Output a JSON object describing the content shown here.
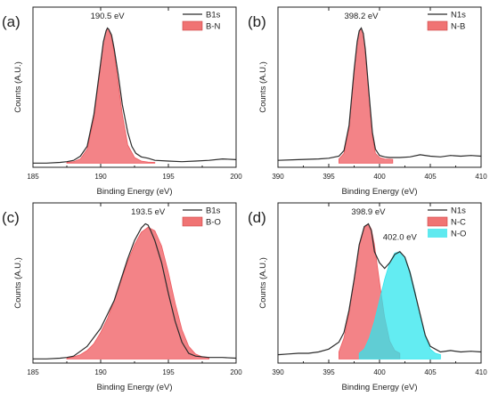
{
  "colors": {
    "data_line": "#2b2b2b",
    "fill_red": "#ef5a5f",
    "fill_red_legend": "#f07373",
    "fill_cyan": "#2fe6ee",
    "fill_cyan_legend": "#5fe9ef",
    "axis": "#222222"
  },
  "chart_data": [
    {
      "panel_label": "(a)",
      "type": "line",
      "xlabel": "Binding Energy (eV)",
      "ylabel": "Counts (A.U.)",
      "xlim": [
        185,
        200
      ],
      "ylim": [
        0,
        1.15
      ],
      "xticks": [
        "185",
        "190",
        "195",
        "200"
      ],
      "legend_position": "top-right",
      "peak_labels": [
        {
          "text": "190.5 eV",
          "x": 190.5,
          "y": 1.04
        }
      ],
      "series": [
        {
          "name": "B1s",
          "kind": "data",
          "x": [
            185,
            186,
            187,
            187.5,
            188,
            188.5,
            189,
            189.5,
            190,
            190.2,
            190.4,
            190.5,
            190.6,
            190.8,
            191,
            191.3,
            191.6,
            192,
            192.3,
            192.6,
            193,
            193.5,
            194,
            195,
            196,
            197,
            198,
            199,
            200
          ],
          "y": [
            0.03,
            0.03,
            0.035,
            0.04,
            0.05,
            0.08,
            0.15,
            0.38,
            0.75,
            0.9,
            0.98,
            1.0,
            0.99,
            0.95,
            0.85,
            0.66,
            0.45,
            0.25,
            0.15,
            0.1,
            0.075,
            0.065,
            0.05,
            0.045,
            0.04,
            0.045,
            0.05,
            0.06,
            0.055
          ]
        },
        {
          "name": "B-N",
          "kind": "fill",
          "x": [
            187.5,
            188,
            188.5,
            189,
            189.5,
            190,
            190.2,
            190.4,
            190.5,
            190.6,
            190.8,
            191,
            191.3,
            191.6,
            192,
            192.5,
            193,
            193.5,
            194
          ],
          "y": [
            0.035,
            0.04,
            0.06,
            0.13,
            0.35,
            0.74,
            0.9,
            0.98,
            1.0,
            0.985,
            0.93,
            0.82,
            0.6,
            0.38,
            0.16,
            0.07,
            0.045,
            0.037,
            0.035
          ]
        }
      ]
    },
    {
      "panel_label": "(b)",
      "type": "line",
      "xlabel": "Binding Energy (eV)",
      "ylabel": "Counts (A.U.)",
      "xlim": [
        390,
        410
      ],
      "ylim": [
        0,
        1.15
      ],
      "xticks": [
        "390",
        "395",
        "400",
        "405",
        "410"
      ],
      "legend_position": "top-right",
      "peak_labels": [
        {
          "text": "398.2 eV",
          "x": 398.2,
          "y": 1.04
        }
      ],
      "series": [
        {
          "name": "N1s",
          "kind": "data",
          "x": [
            390,
            392,
            394,
            395,
            396,
            396.5,
            397,
            397.5,
            397.8,
            398,
            398.2,
            398.4,
            398.6,
            399,
            399.3,
            399.6,
            400,
            400.5,
            401,
            402,
            403,
            404,
            405,
            406,
            407,
            408,
            409,
            410
          ],
          "y": [
            0.05,
            0.055,
            0.06,
            0.065,
            0.08,
            0.12,
            0.3,
            0.7,
            0.9,
            0.98,
            1.0,
            0.96,
            0.85,
            0.5,
            0.25,
            0.13,
            0.085,
            0.075,
            0.07,
            0.07,
            0.075,
            0.09,
            0.08,
            0.075,
            0.085,
            0.08,
            0.085,
            0.08
          ]
        },
        {
          "name": "N-B",
          "kind": "fill",
          "x": [
            396,
            396.5,
            397,
            397.5,
            397.8,
            398,
            398.2,
            398.4,
            398.6,
            399,
            399.3,
            399.6,
            400,
            400.5,
            401,
            401.3
          ],
          "y": [
            0.06,
            0.1,
            0.28,
            0.68,
            0.89,
            0.975,
            1.0,
            0.96,
            0.84,
            0.48,
            0.22,
            0.1,
            0.07,
            0.06,
            0.058,
            0.057
          ]
        }
      ]
    },
    {
      "panel_label": "(c)",
      "type": "line",
      "xlabel": "Binding Energy (eV)",
      "ylabel": "Counts (A.U.)",
      "xlim": [
        185,
        200
      ],
      "ylim": [
        0,
        1.15
      ],
      "xticks": [
        "185",
        "190",
        "195",
        "200"
      ],
      "legend_position": "top-right",
      "peak_labels": [
        {
          "text": "193.5 eV",
          "x": 193.5,
          "y": 1.04
        }
      ],
      "series": [
        {
          "name": "B1s",
          "kind": "data",
          "x": [
            185,
            186,
            187,
            187.5,
            188,
            189,
            190,
            191,
            191.5,
            192,
            192.5,
            193,
            193.3,
            193.5,
            193.7,
            194,
            194.5,
            195,
            195.5,
            196,
            196.5,
            197,
            198,
            199,
            200
          ],
          "y": [
            0.03,
            0.03,
            0.035,
            0.04,
            0.05,
            0.12,
            0.25,
            0.45,
            0.6,
            0.75,
            0.88,
            0.97,
            1.0,
            0.99,
            0.95,
            0.88,
            0.72,
            0.5,
            0.3,
            0.15,
            0.07,
            0.05,
            0.04,
            0.04,
            0.035
          ]
        },
        {
          "name": "B-O",
          "kind": "fill",
          "x": [
            187.5,
            188,
            188.5,
            189,
            189.5,
            190,
            190.5,
            191,
            191.5,
            192,
            192.5,
            193,
            193.5,
            194,
            194.5,
            195,
            195.5,
            196,
            196.5,
            197,
            197.5,
            198
          ],
          "y": [
            0.035,
            0.045,
            0.06,
            0.09,
            0.14,
            0.22,
            0.32,
            0.45,
            0.59,
            0.73,
            0.85,
            0.94,
            0.975,
            0.95,
            0.84,
            0.65,
            0.43,
            0.24,
            0.12,
            0.065,
            0.045,
            0.04
          ]
        }
      ]
    },
    {
      "panel_label": "(d)",
      "type": "line",
      "xlabel": "Binding Energy (eV)",
      "ylabel": "Counts (A.U.)",
      "xlim": [
        390,
        410
      ],
      "ylim": [
        0,
        1.15
      ],
      "xticks": [
        "390",
        "395",
        "400",
        "405",
        "410"
      ],
      "legend_position": "top-right",
      "peak_labels": [
        {
          "text": "398.9 eV",
          "x": 398.9,
          "y": 1.04
        },
        {
          "text": "402.0 eV",
          "x": 402.0,
          "y": 0.86
        }
      ],
      "series": [
        {
          "name": "N1s",
          "kind": "data",
          "x": [
            390,
            391,
            392,
            393,
            394,
            395,
            396,
            396.5,
            397,
            397.5,
            398,
            398.5,
            398.9,
            399.2,
            399.5,
            400,
            400.5,
            401,
            401.5,
            402,
            402.5,
            403,
            403.5,
            404,
            404.5,
            405,
            406,
            407,
            408,
            409,
            410
          ],
          "y": [
            0.06,
            0.065,
            0.07,
            0.07,
            0.08,
            0.1,
            0.15,
            0.22,
            0.38,
            0.6,
            0.85,
            0.98,
            1.0,
            0.95,
            0.8,
            0.72,
            0.68,
            0.72,
            0.78,
            0.8,
            0.76,
            0.65,
            0.5,
            0.35,
            0.2,
            0.12,
            0.08,
            0.09,
            0.08,
            0.085,
            0.08
          ]
        },
        {
          "name": "N-C",
          "kind": "fill",
          "x": [
            396,
            396.5,
            397,
            397.5,
            398,
            398.5,
            398.9,
            399.2,
            399.5,
            400,
            400.5,
            401,
            401.5,
            402
          ],
          "y": [
            0.08,
            0.18,
            0.36,
            0.6,
            0.84,
            0.97,
            1.0,
            0.96,
            0.85,
            0.58,
            0.33,
            0.16,
            0.09,
            0.07
          ]
        },
        {
          "name": "N-O",
          "kind": "fill",
          "x": [
            398,
            398.5,
            399,
            399.5,
            400,
            400.5,
            401,
            401.5,
            402,
            402.5,
            403,
            403.5,
            404,
            404.5,
            405,
            405.5,
            406
          ],
          "y": [
            0.07,
            0.1,
            0.18,
            0.3,
            0.45,
            0.6,
            0.72,
            0.79,
            0.8,
            0.76,
            0.66,
            0.51,
            0.34,
            0.19,
            0.1,
            0.07,
            0.06
          ]
        }
      ]
    }
  ]
}
